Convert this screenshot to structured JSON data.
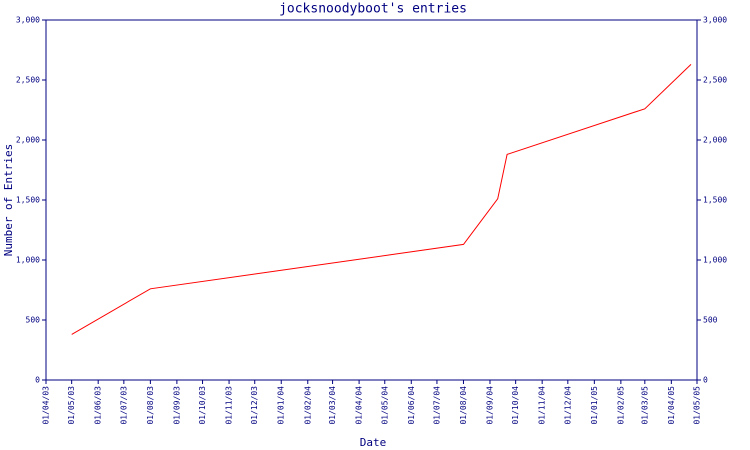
{
  "chart_data": {
    "type": "line",
    "title": "jocksnoodyboot's entries",
    "x_label": "Date",
    "y_label": "Number of Entries",
    "x": [
      "01/05/03",
      "01/08/03",
      "01/08/04",
      "10/09/04",
      "21/09/04",
      "01/03/05",
      "24/04/05"
    ],
    "series": [
      {
        "name": "entries",
        "color": "#ff0000",
        "values": [
          380,
          760,
          1130,
          1510,
          1880,
          2260,
          2630
        ]
      }
    ],
    "xlim": [
      "01/04/03",
      "01/05/05"
    ],
    "xticks": [
      "01/04/03",
      "01/05/03",
      "01/06/03",
      "01/07/03",
      "01/08/03",
      "01/09/03",
      "01/10/03",
      "01/11/03",
      "01/12/03",
      "01/01/04",
      "01/02/04",
      "01/03/04",
      "01/04/04",
      "01/05/04",
      "01/06/04",
      "01/07/04",
      "01/08/04",
      "01/09/04",
      "01/10/04",
      "01/11/04",
      "01/12/04",
      "01/01/05",
      "01/02/05",
      "01/03/05",
      "01/04/05",
      "01/05/05"
    ],
    "ylim": [
      0,
      3000
    ],
    "yticks": [
      0,
      500,
      {
        "value": 1000,
        "label": "1,000"
      },
      {
        "value": 1500,
        "label": "1,500"
      },
      {
        "value": 2000,
        "label": "2,000"
      },
      {
        "value": 2500,
        "label": "2,500"
      },
      {
        "value": 3000,
        "label": "3,000"
      }
    ],
    "axis_color": "#000080"
  }
}
